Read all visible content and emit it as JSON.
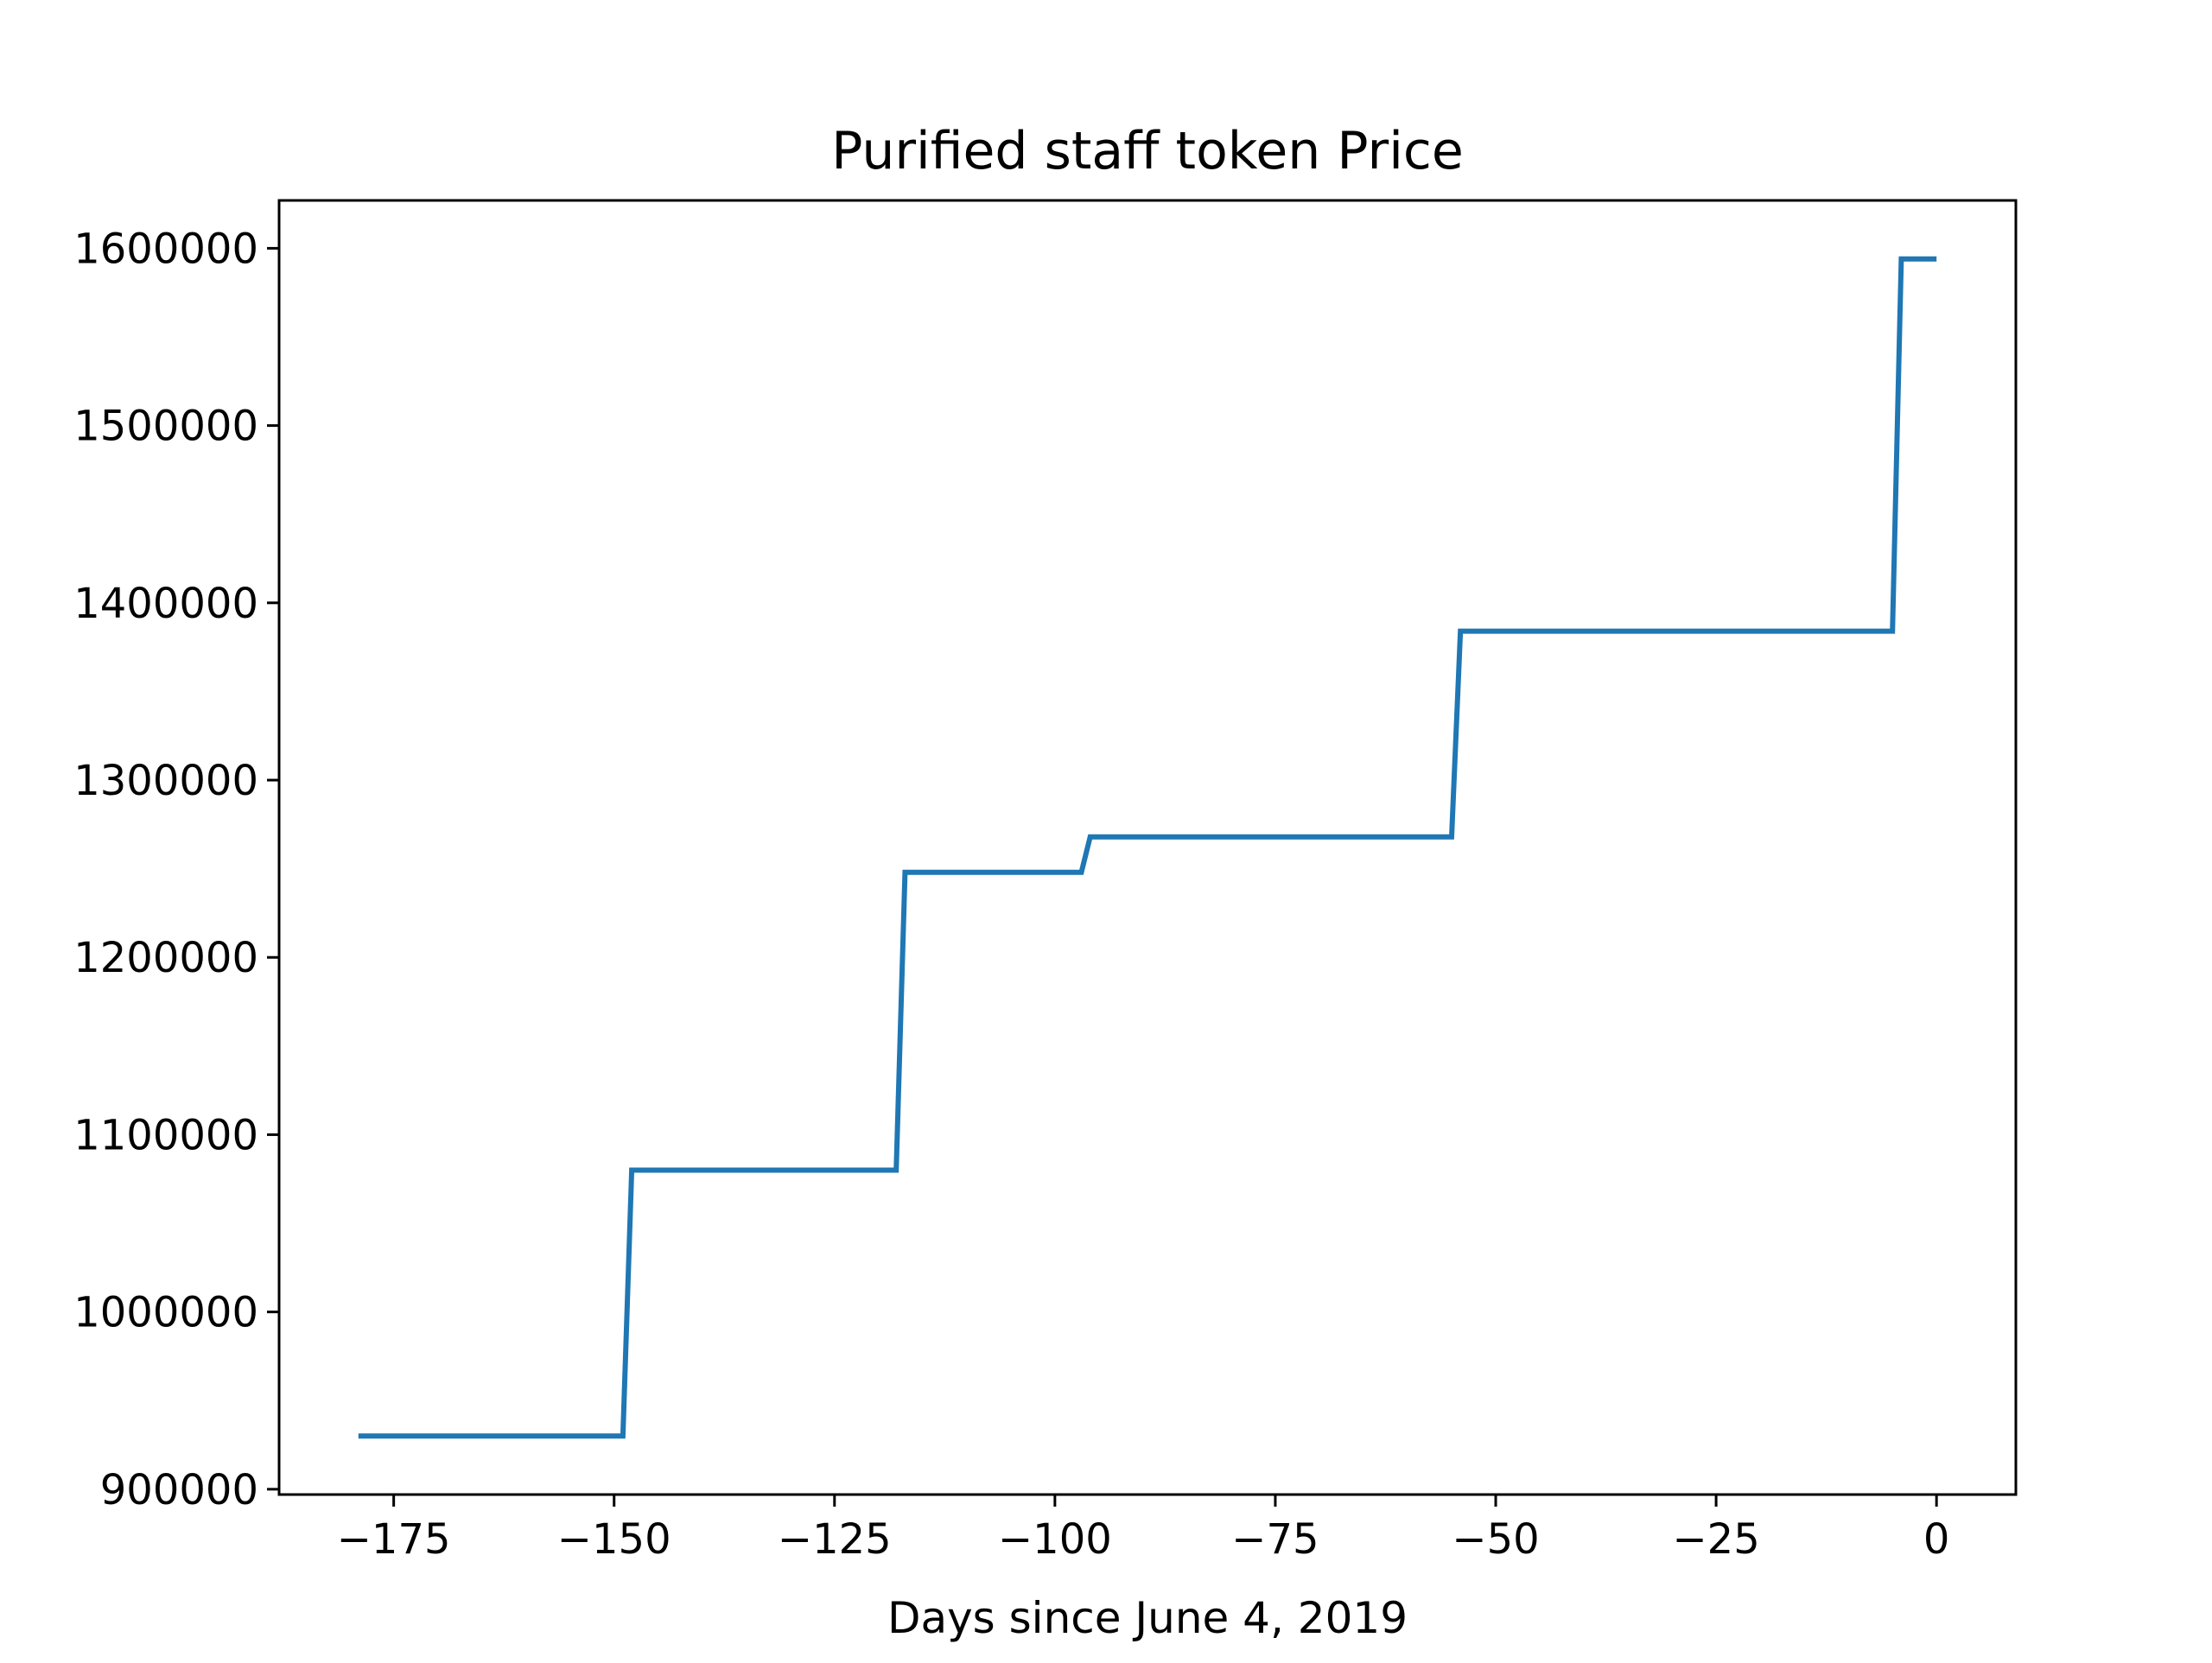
{
  "chart_data": {
    "type": "line",
    "title": "Purified staff token Price",
    "xlabel": "Days since June 4, 2019",
    "ylabel": "",
    "xlim": [
      -188,
      9
    ],
    "ylim": [
      897000,
      1627000
    ],
    "x_ticks": [
      -175,
      -150,
      -125,
      -100,
      -75,
      -50,
      -25,
      0
    ],
    "x_tick_labels": [
      "−175",
      "−150",
      "−125",
      "−100",
      "−75",
      "−50",
      "−25",
      "0"
    ],
    "y_ticks": [
      900000,
      1000000,
      1100000,
      1200000,
      1300000,
      1400000,
      1500000,
      1600000
    ],
    "y_tick_labels": [
      "900000",
      "1000000",
      "1100000",
      "1200000",
      "1300000",
      "1400000",
      "1500000",
      "1600000"
    ],
    "grid": false,
    "series": [
      {
        "color": "#1f77b4",
        "x": [
          -179,
          -149,
          -148,
          -118,
          -117,
          -97,
          -96,
          -55,
          -54,
          -5,
          -4,
          0
        ],
        "y": [
          930000,
          930000,
          1080000,
          1080000,
          1248000,
          1248000,
          1268000,
          1268000,
          1384000,
          1384000,
          1594000,
          1594000
        ]
      }
    ]
  }
}
